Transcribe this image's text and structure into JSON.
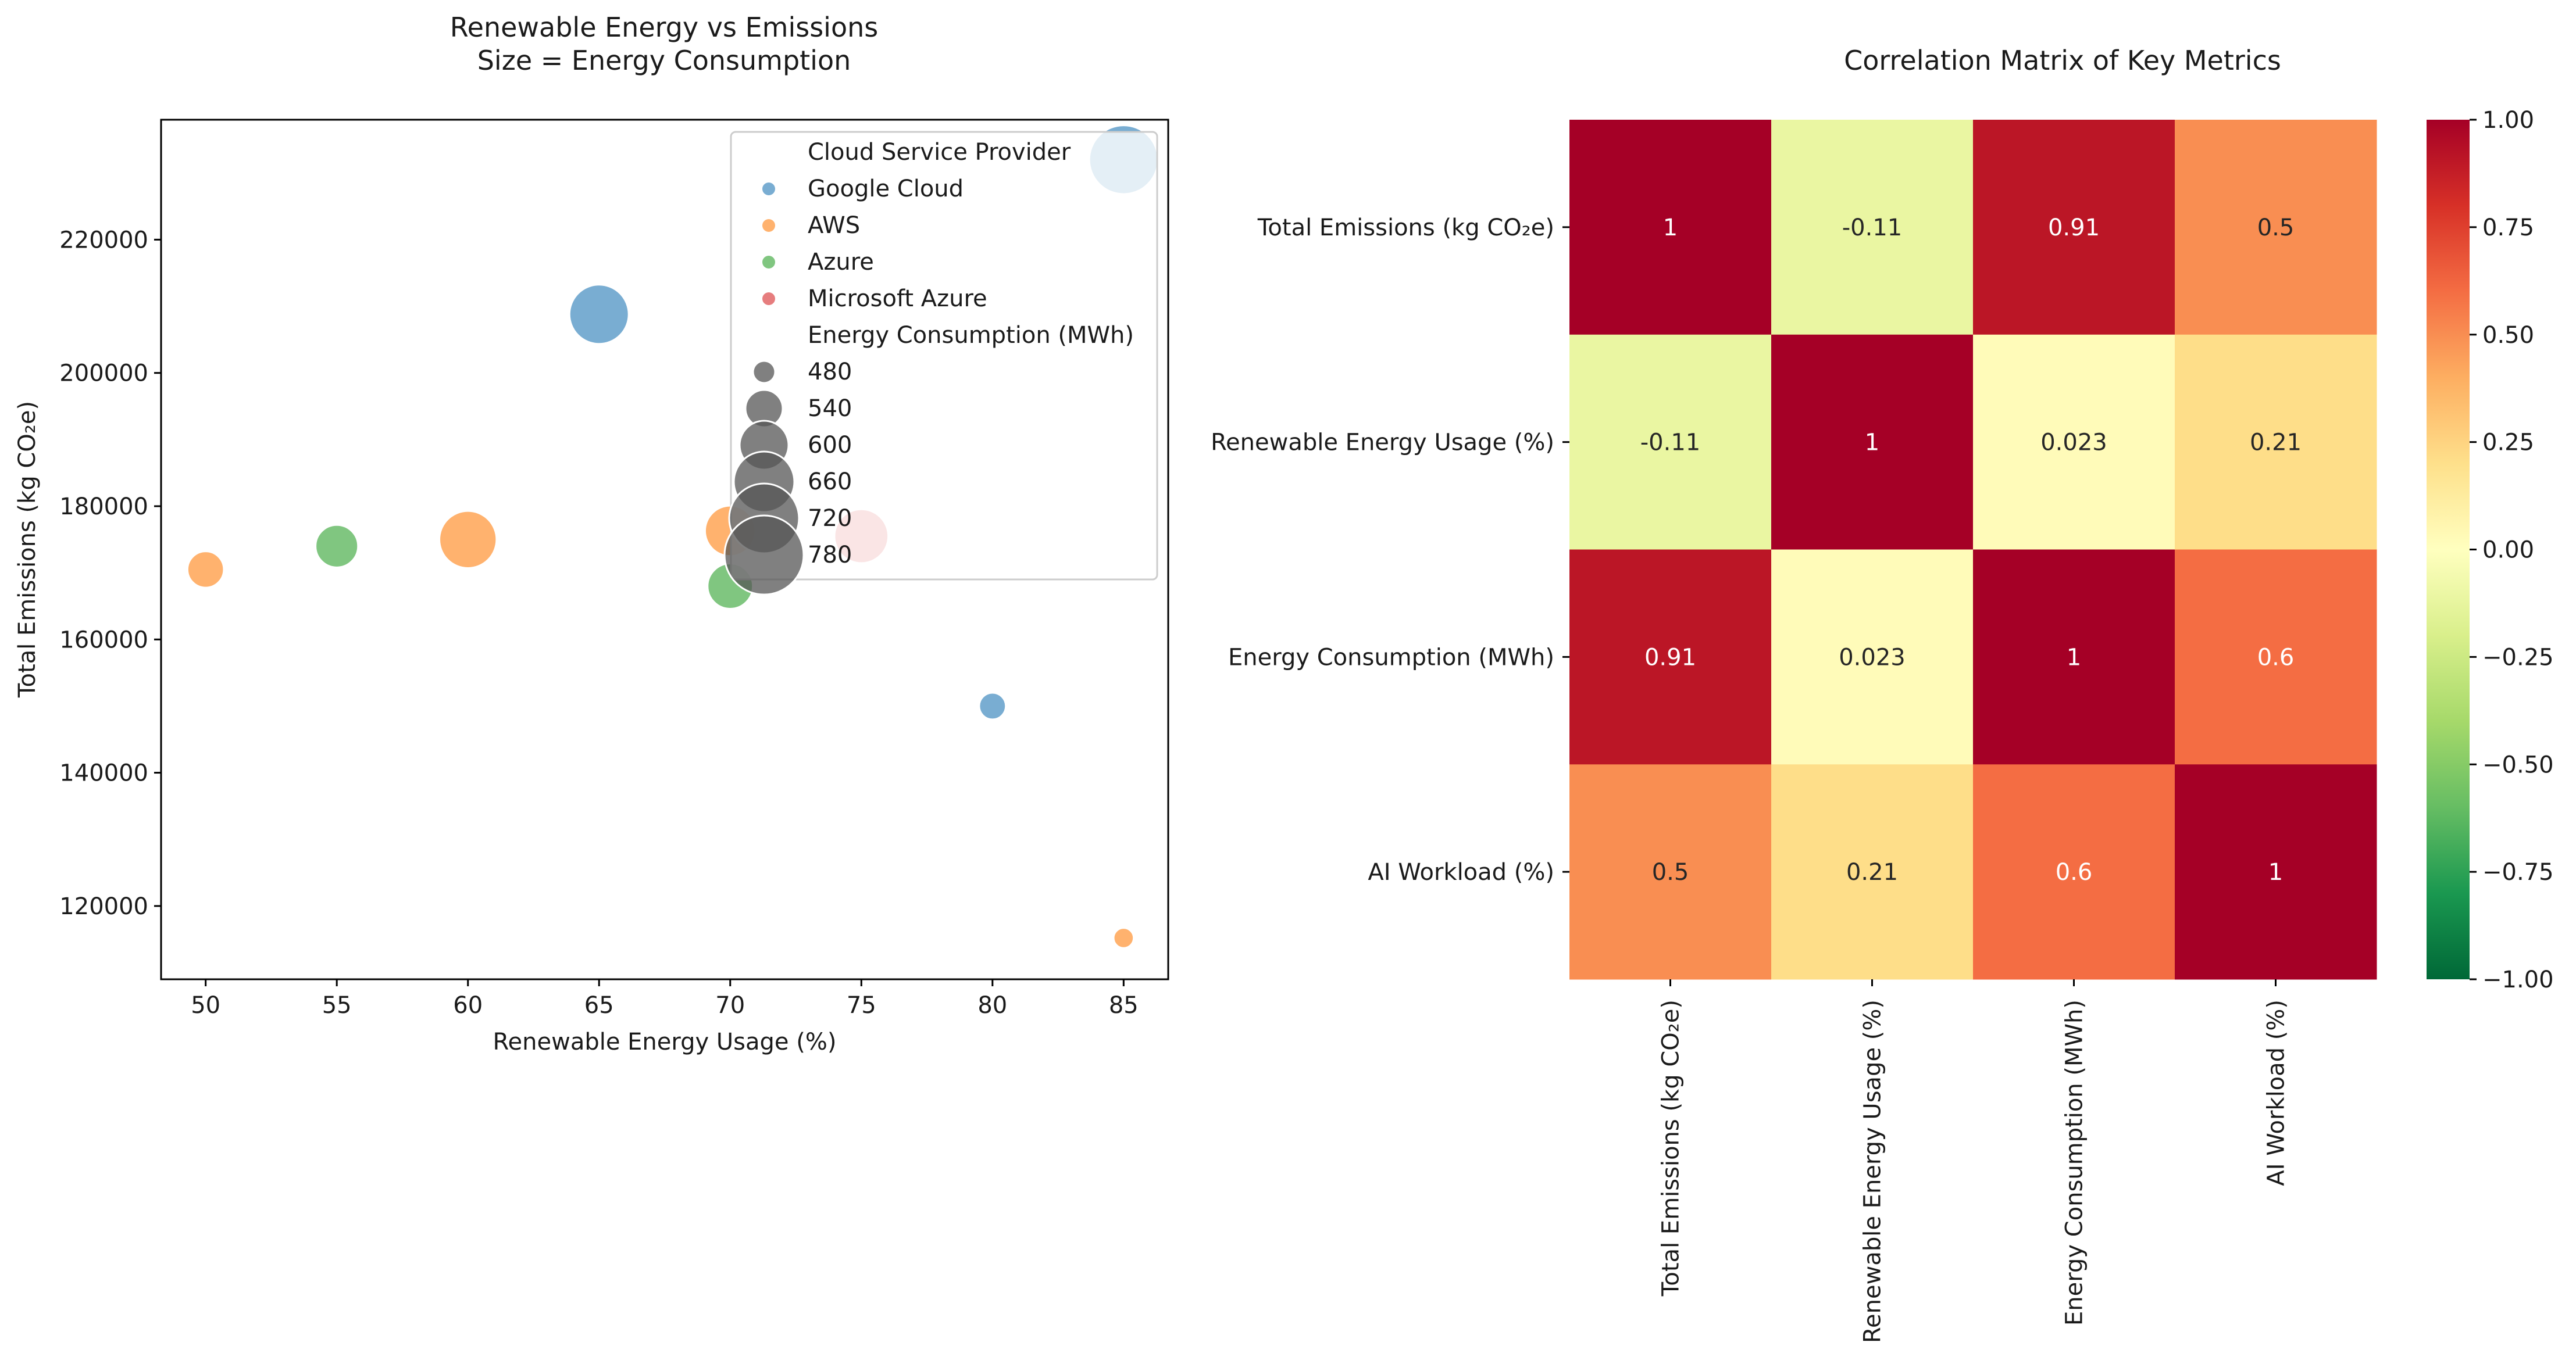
{
  "chart_data": [
    {
      "type": "scatter",
      "title": "Renewable Energy vs Emissions",
      "subtitle": "Size = Energy Consumption",
      "xlabel": "Renewable Energy Usage (%)",
      "ylabel": "Total Emissions (kg CO₂e)",
      "xlim": [
        48.3,
        86.7
      ],
      "ylim": [
        109000,
        238000
      ],
      "xticks": [
        50,
        55,
        60,
        65,
        70,
        75,
        80,
        85
      ],
      "yticks": [
        120000,
        140000,
        160000,
        180000,
        200000,
        220000
      ],
      "grid": false,
      "legend_position": "top-right",
      "hue_title": "Cloud Service Provider",
      "size_title": "Energy Consumption (MWh)",
      "size_legend_values": [
        480,
        540,
        600,
        660,
        720,
        780
      ],
      "size_range": [
        445,
        800
      ],
      "series": [
        {
          "name": "Google Cloud",
          "color": "#1f77b4",
          "points": [
            {
              "x": 65,
              "y": 208800,
              "size": 700
            },
            {
              "x": 80,
              "y": 150000,
              "size": 470
            },
            {
              "x": 85,
              "y": 232000,
              "size": 800
            }
          ]
        },
        {
          "name": "AWS",
          "color": "#ff7f0e",
          "points": [
            {
              "x": 50,
              "y": 170500,
              "size": 520
            },
            {
              "x": 60,
              "y": 175000,
              "size": 680
            },
            {
              "x": 70,
              "y": 176300,
              "size": 620
            },
            {
              "x": 85,
              "y": 115200,
              "size": 445
            }
          ]
        },
        {
          "name": "Azure",
          "color": "#2ca02c",
          "points": [
            {
              "x": 55,
              "y": 174000,
              "size": 560
            },
            {
              "x": 70,
              "y": 168000,
              "size": 580
            }
          ]
        },
        {
          "name": "Microsoft Azure",
          "color": "#d62728",
          "points": [
            {
              "x": 75,
              "y": 175500,
              "size": 650
            }
          ]
        }
      ]
    },
    {
      "type": "heatmap",
      "title": "Correlation Matrix of Key Metrics",
      "labels": [
        "Total Emissions (kg CO₂e)",
        "Renewable Energy Usage (%)",
        "Energy Consumption (MWh)",
        "AI Workload (%)"
      ],
      "matrix": [
        [
          1,
          -0.11,
          0.91,
          0.5
        ],
        [
          -0.11,
          1,
          0.023,
          0.21
        ],
        [
          0.91,
          0.023,
          1,
          0.6
        ],
        [
          0.5,
          0.21,
          0.6,
          1
        ]
      ],
      "cell_text": [
        [
          "1",
          "-0.11",
          "0.91",
          "0.5"
        ],
        [
          "-0.11",
          "1",
          "0.023",
          "0.21"
        ],
        [
          "0.91",
          "0.023",
          "1",
          "0.6"
        ],
        [
          "0.5",
          "0.21",
          "0.6",
          "1"
        ]
      ],
      "colormap": "RdYlGn_r",
      "vmin": -1,
      "vmax": 1,
      "colorbar_ticks": [
        "1.00",
        "0.75",
        "0.50",
        "0.25",
        "0.00",
        "−0.25",
        "−0.50",
        "−0.75",
        "−1.00"
      ],
      "colorbar_tick_values": [
        1,
        0.75,
        0.5,
        0.25,
        0,
        -0.25,
        -0.5,
        -0.75,
        -1
      ]
    }
  ]
}
